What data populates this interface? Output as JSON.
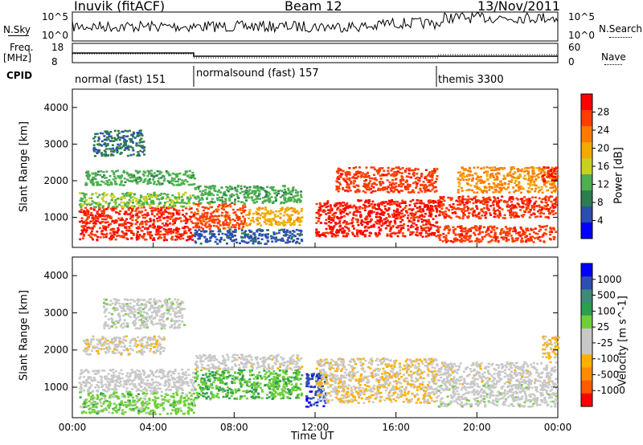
{
  "header": {
    "station": "Inuvik (fitACF)",
    "beam": "Beam 12",
    "date": "13/Nov/2011"
  },
  "noise_panel": {
    "left_label": "N.Sky",
    "left_ticks": [
      "10^5",
      "10^0"
    ],
    "right_ticks": [
      "10^5",
      "10^0"
    ],
    "right_label": "N.Search"
  },
  "freq_panel": {
    "left_label_1": "Freq.",
    "left_label_2": "[MHz]",
    "left_ticks": [
      "18",
      "8"
    ],
    "right_ticks": [
      "60",
      "0"
    ],
    "right_label": "Nave"
  },
  "cpid": {
    "label": "CPID",
    "segments": [
      {
        "name": "normal (fast) 151",
        "start_hour": 0,
        "end_hour": 6
      },
      {
        "name": "normalsound (fast) 157",
        "start_hour": 6,
        "end_hour": 18
      },
      {
        "name": "themis 3300",
        "start_hour": 18,
        "end_hour": 24
      }
    ]
  },
  "chart_data": [
    {
      "type": "heatmap",
      "title": "",
      "xlabel": "Time UT",
      "ylabel": "Slant Range [km]",
      "x_ticks": [
        "00:00",
        "04:00",
        "08:00",
        "12:00",
        "16:00",
        "20:00",
        "00:00"
      ],
      "xlim_hours": [
        0,
        24
      ],
      "y_ticks": [
        1000,
        2000,
        3000,
        4000
      ],
      "ylim": [
        180,
        4500
      ],
      "colorbar": {
        "label": "Power [dB]",
        "ticks": [
          "4",
          "8",
          "12",
          "16",
          "20",
          "24",
          "28"
        ],
        "range": [
          0,
          32
        ],
        "colors": [
          "#0000ff",
          "#2b4fb0",
          "#2e7d4f",
          "#4caf50",
          "#c8d020",
          "#f2a900",
          "#ff7a00",
          "#ff3d00",
          "#ff0000"
        ]
      },
      "bands": [
        {
          "x0": 0.3,
          "x1": 6.0,
          "y0": 400,
          "y1": 1300,
          "value": 28
        },
        {
          "x0": 0.3,
          "x1": 6.0,
          "y0": 1300,
          "y1": 1700,
          "value": 14
        },
        {
          "x0": 0.6,
          "x1": 6.0,
          "y0": 1900,
          "y1": 2300,
          "value": 12
        },
        {
          "x0": 1.0,
          "x1": 3.5,
          "y0": 2700,
          "y1": 3400,
          "value": 8
        },
        {
          "x0": 6.0,
          "x1": 8.5,
          "y0": 700,
          "y1": 1400,
          "value": 26
        },
        {
          "x0": 6.0,
          "x1": 11.3,
          "y0": 1400,
          "y1": 1900,
          "value": 12
        },
        {
          "x0": 8.5,
          "x1": 11.3,
          "y0": 800,
          "y1": 1300,
          "value": 20
        },
        {
          "x0": 6.0,
          "x1": 11.3,
          "y0": 300,
          "y1": 700,
          "value": 6
        },
        {
          "x0": 12.0,
          "x1": 18.0,
          "y0": 500,
          "y1": 1500,
          "value": 29
        },
        {
          "x0": 13.0,
          "x1": 18.0,
          "y0": 1700,
          "y1": 2400,
          "value": 27
        },
        {
          "x0": 18.0,
          "x1": 23.9,
          "y0": 1000,
          "y1": 1600,
          "value": 28
        },
        {
          "x0": 18.0,
          "x1": 23.9,
          "y0": 350,
          "y1": 800,
          "value": 27
        },
        {
          "x0": 19.0,
          "x1": 23.9,
          "y0": 1700,
          "y1": 2400,
          "value": 22
        },
        {
          "x0": 23.2,
          "x1": 24.0,
          "y0": 2000,
          "y1": 2400,
          "value": 29
        }
      ]
    },
    {
      "type": "heatmap",
      "title": "",
      "xlabel": "Time UT",
      "ylabel": "Slant Range [km]",
      "x_ticks": [
        "00:00",
        "04:00",
        "08:00",
        "12:00",
        "16:00",
        "20:00",
        "00:00"
      ],
      "xlim_hours": [
        0,
        24
      ],
      "y_ticks": [
        1000,
        2000,
        3000,
        4000
      ],
      "ylim": [
        180,
        4500
      ],
      "colorbar": {
        "label": "Velocity [m s^-1]",
        "ticks": [
          "1000",
          "500",
          "100",
          "25",
          "-25",
          "-100",
          "-500",
          "-1000"
        ],
        "range": [
          -1200,
          1200
        ],
        "colors": [
          "#ff0000",
          "#ff5a00",
          "#ff8c00",
          "#ffb000",
          "#c8c8c8",
          "#c8c8c8",
          "#6fcf3a",
          "#2e9e4f",
          "#3c8c78",
          "#2d4fb0",
          "#0000ff"
        ]
      },
      "bands": [
        {
          "x0": 0.3,
          "x1": 6.0,
          "y0": 300,
          "y1": 900,
          "value": 200
        },
        {
          "x0": 0.3,
          "x1": 6.0,
          "y0": 900,
          "y1": 1500,
          "value": -150
        },
        {
          "x0": 1.5,
          "x1": 5.5,
          "y0": 2600,
          "y1": 3400,
          "value": 0
        },
        {
          "x0": 0.5,
          "x1": 4.5,
          "y0": 1900,
          "y1": 2400,
          "value": -250
        },
        {
          "x0": 6.0,
          "x1": 11.3,
          "y0": 700,
          "y1": 1500,
          "value": 300
        },
        {
          "x0": 6.0,
          "x1": 11.3,
          "y0": 1500,
          "y1": 1900,
          "value": -200
        },
        {
          "x0": 11.5,
          "x1": 12.5,
          "y0": 500,
          "y1": 1400,
          "value": 900
        },
        {
          "x0": 12.0,
          "x1": 18.0,
          "y0": 600,
          "y1": 1800,
          "value": -300
        },
        {
          "x0": 18.0,
          "x1": 23.9,
          "y0": 500,
          "y1": 1100,
          "value": 0
        },
        {
          "x0": 18.0,
          "x1": 23.9,
          "y0": 1100,
          "y1": 1700,
          "value": -200
        },
        {
          "x0": 23.2,
          "x1": 24.0,
          "y0": 1800,
          "y1": 2400,
          "value": -350
        }
      ]
    }
  ]
}
